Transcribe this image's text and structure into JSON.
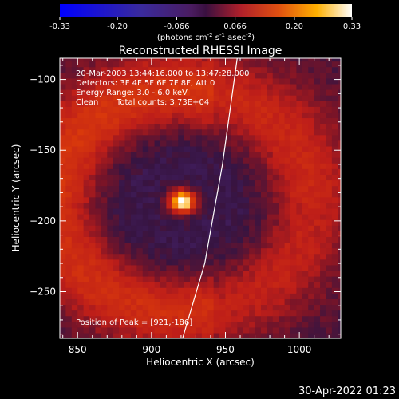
{
  "colorbar": {
    "ticks": [
      "-0.33",
      "-0.20",
      "-0.066",
      "0.066",
      "0.20",
      "0.33"
    ],
    "tick_values": [
      -0.33,
      -0.2,
      -0.066,
      0.066,
      0.2,
      0.33
    ],
    "range": [
      -0.33,
      0.33
    ],
    "units_prefix": "(photons cm",
    "units_exp1": "-2",
    "units_mid": " s",
    "units_exp2": "-1",
    "units_mid2": " asec",
    "units_exp3": "-2",
    "units_suffix": ")"
  },
  "chart_data": {
    "type": "heatmap",
    "title": "Reconstructed RHESSI Image",
    "xlabel": "Heliocentric X (arcsec)",
    "ylabel": "Heliocentric Y (arcsec)",
    "xlim": [
      838,
      1028
    ],
    "ylim": [
      -283,
      -85
    ],
    "xticks": [
      850,
      900,
      950,
      1000
    ],
    "yticks": [
      -100,
      -150,
      -200,
      -250
    ],
    "xtick_labels": [
      "850",
      "900",
      "950",
      "1000"
    ],
    "ytick_labels": [
      "−100",
      "−150",
      "−200",
      "−250"
    ],
    "annotations": [
      "20-Mar-2003 13:44:16.000 to 13:47:28.000",
      "Detectors: 3F 4F 5F 6F 7F 8F, Att 0",
      "Energy Range: 3.0 - 6.0 keV",
      "Clean",
      "Total counts: 3.73E+04",
      "Position of Peak = [921,-186]"
    ],
    "peak": {
      "x": 921,
      "y": -186,
      "value": 0.33
    },
    "limb_curve": {
      "x": [
        958,
        948,
        936,
        921
      ],
      "y": [
        -85,
        -160,
        -230,
        -283
      ]
    }
  },
  "footer": {
    "timestamp": "30-Apr-2022 01:23"
  }
}
